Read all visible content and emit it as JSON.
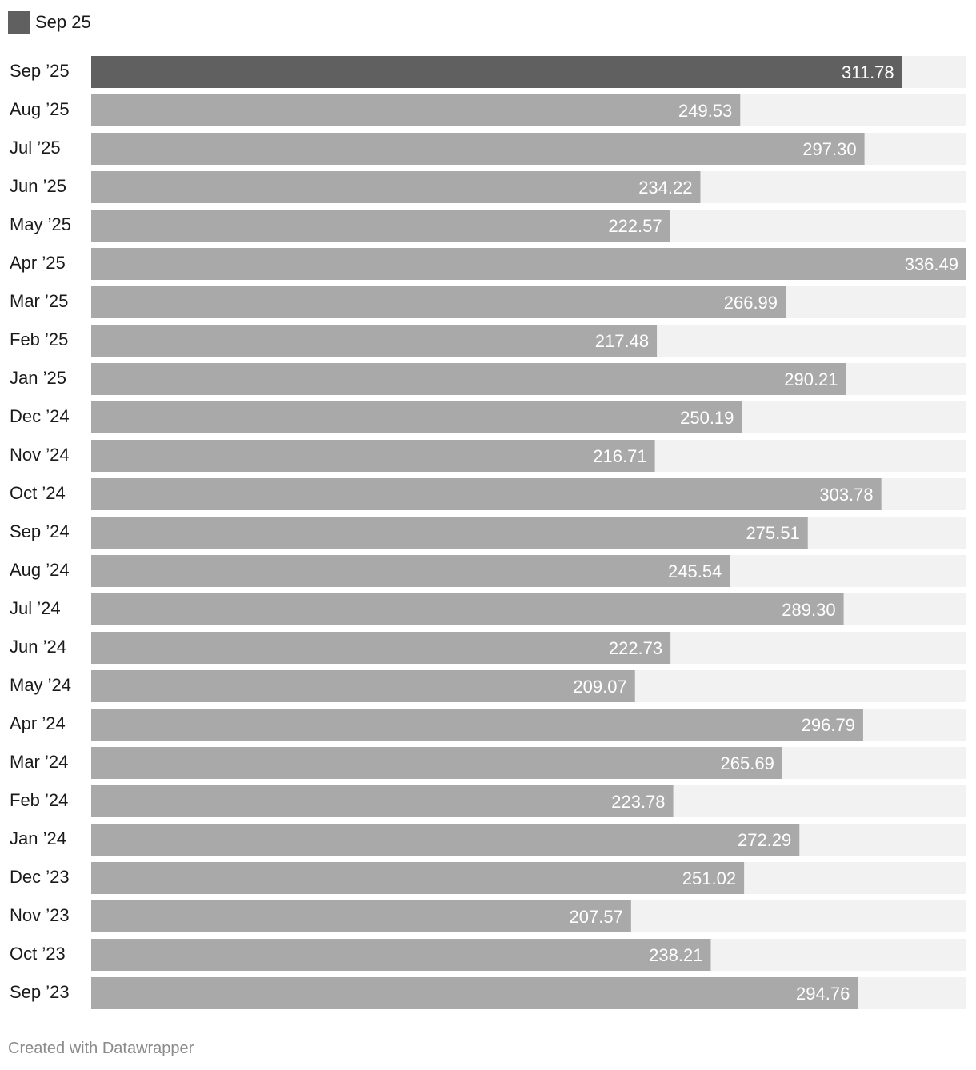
{
  "legend": {
    "label": "Sep 25",
    "color": "#606060"
  },
  "colors": {
    "highlight": "#606060",
    "bar": "#a9a9a9",
    "track": "#f2f2f2"
  },
  "footer": {
    "credit": "Created with Datawrapper"
  },
  "chart_data": {
    "type": "bar",
    "orientation": "horizontal",
    "title": "",
    "xlabel": "",
    "ylabel": "",
    "xlim": [
      0,
      336.49
    ],
    "grid": false,
    "legend_placement": "top-left",
    "highlight_category": "Sep ’25",
    "categories": [
      "Sep ’25",
      "Aug ’25",
      "Jul ’25",
      "Jun ’25",
      "May ’25",
      "Apr ’25",
      "Mar ’25",
      "Feb ’25",
      "Jan ’25",
      "Dec ’24",
      "Nov ’24",
      "Oct ’24",
      "Sep ’24",
      "Aug ’24",
      "Jul ’24",
      "Jun ’24",
      "May ’24",
      "Apr ’24",
      "Mar ’24",
      "Feb ’24",
      "Jan ’24",
      "Dec ’23",
      "Nov ’23",
      "Oct ’23",
      "Sep ’23"
    ],
    "values": [
      311.78,
      249.53,
      297.3,
      234.22,
      222.57,
      336.49,
      266.99,
      217.48,
      290.21,
      250.19,
      216.71,
      303.78,
      275.51,
      245.54,
      289.3,
      222.73,
      209.07,
      296.79,
      265.69,
      223.78,
      272.29,
      251.02,
      207.57,
      238.21,
      294.76
    ],
    "value_labels": [
      "311.78",
      "249.53",
      "297.30",
      "234.22",
      "222.57",
      "336.49",
      "266.99",
      "217.48",
      "290.21",
      "250.19",
      "216.71",
      "303.78",
      "275.51",
      "245.54",
      "289.30",
      "222.73",
      "209.07",
      "296.79",
      "265.69",
      "223.78",
      "272.29",
      "251.02",
      "207.57",
      "238.21",
      "294.76"
    ]
  }
}
